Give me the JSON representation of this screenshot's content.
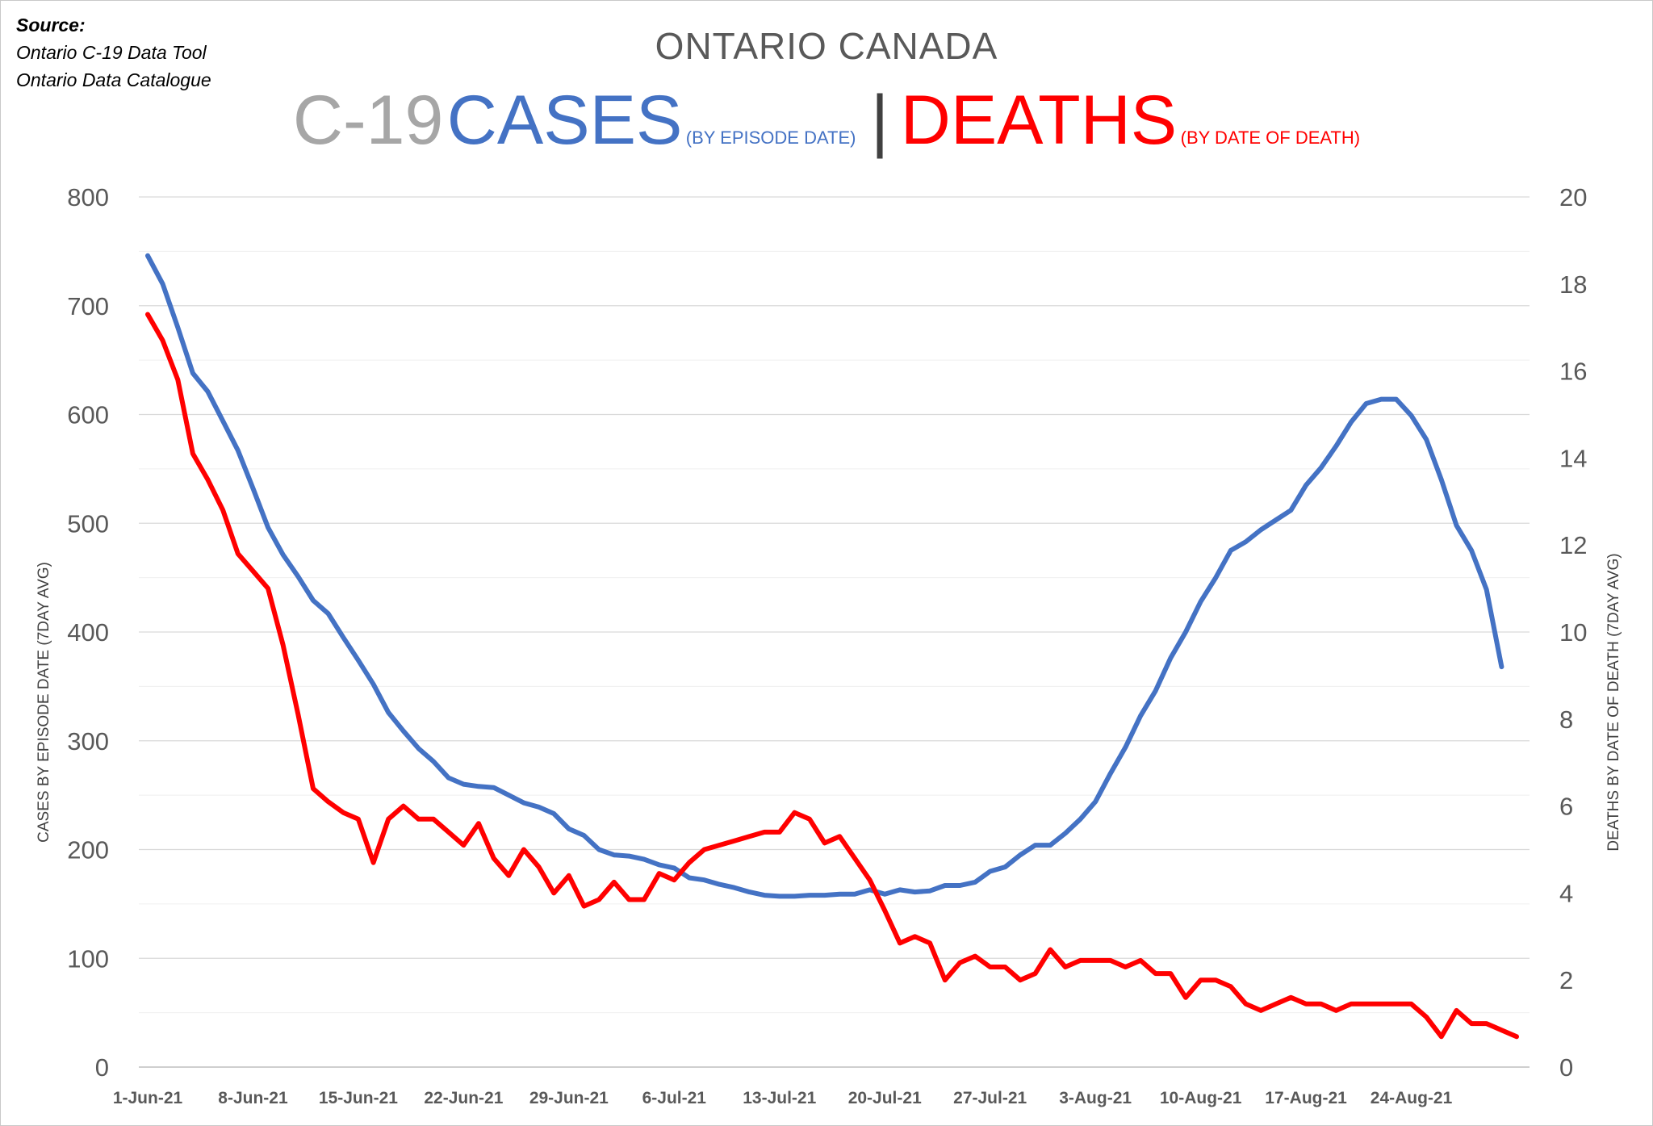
{
  "source": {
    "header": "Source:",
    "lines": [
      "Ontario C-19 Data Tool",
      "Ontario Data Catalogue"
    ]
  },
  "title": {
    "line1": "ONTARIO CANADA",
    "c19": "C-19",
    "cases": "CASES",
    "cases_sub": "(BY EPISODE DATE)",
    "separator": "|",
    "deaths": "DEATHS",
    "deaths_sub": "(BY DATE OF DEATH)"
  },
  "colors": {
    "cases": "#4472c4",
    "deaths": "#ff0000",
    "grid": "#d9d9d9",
    "tick_text": "#595959"
  },
  "chart_data": {
    "type": "line",
    "x_start": "1-Jun-21",
    "x_tick_labels": [
      "1-Jun-21",
      "8-Jun-21",
      "15-Jun-21",
      "22-Jun-21",
      "29-Jun-21",
      "6-Jul-21",
      "13-Jul-21",
      "20-Jul-21",
      "27-Jul-21",
      "3-Aug-21",
      "10-Aug-21",
      "17-Aug-21",
      "24-Aug-21"
    ],
    "y_left": {
      "label": "CASES BY EPISODE DATE (7DAY AVG)",
      "range": [
        0,
        800
      ],
      "ticks": [
        0,
        100,
        200,
        300,
        400,
        500,
        600,
        700,
        800
      ]
    },
    "y_right": {
      "label": "DEATHS BY DATE OF DEATH (7DAY AVG)",
      "range": [
        0,
        20
      ],
      "ticks": [
        0,
        2,
        4,
        6,
        8,
        10,
        12,
        14,
        16,
        18,
        20
      ]
    },
    "grid": true,
    "series": [
      {
        "name": "CASES",
        "axis": "left",
        "values": [
          746,
          720,
          680,
          638,
          621,
          594,
          567,
          532,
          496,
          471,
          451,
          429,
          417,
          395,
          374,
          352,
          326,
          309,
          293,
          281,
          266,
          260,
          258,
          257,
          250,
          243,
          239,
          233,
          219,
          213,
          200,
          195,
          194,
          191,
          186,
          183,
          174,
          172,
          168,
          165,
          161,
          158,
          157,
          157,
          158,
          158,
          159,
          159,
          163,
          159,
          163,
          161,
          162,
          167,
          167,
          170,
          180,
          184,
          195,
          204,
          204,
          215,
          228,
          244,
          270,
          294,
          323,
          346,
          376,
          400,
          428,
          450,
          475,
          483,
          494,
          503,
          512,
          535,
          551,
          571,
          593,
          610,
          614,
          614,
          599,
          577,
          540,
          498,
          475,
          439,
          368
        ]
      },
      {
        "name": "DEATHS",
        "axis": "right",
        "values": [
          17.3,
          16.7,
          15.8,
          14.1,
          13.5,
          12.8,
          11.8,
          11.4,
          11.0,
          9.7,
          8.1,
          6.4,
          6.1,
          5.85,
          5.7,
          4.7,
          5.7,
          6.0,
          5.7,
          5.7,
          5.4,
          5.1,
          5.6,
          4.8,
          4.4,
          5.0,
          4.6,
          4.0,
          4.4,
          3.7,
          3.85,
          4.25,
          3.85,
          3.85,
          4.45,
          4.3,
          4.7,
          5.0,
          5.1,
          5.2,
          5.3,
          5.4,
          5.4,
          5.85,
          5.7,
          5.15,
          5.3,
          4.8,
          4.3,
          3.6,
          2.85,
          3.0,
          2.85,
          2.0,
          2.4,
          2.55,
          2.3,
          2.3,
          2.0,
          2.15,
          2.7,
          2.3,
          2.45,
          2.45,
          2.45,
          2.3,
          2.45,
          2.15,
          2.15,
          1.6,
          2.0,
          2.0,
          1.85,
          1.45,
          1.3,
          1.45,
          1.6,
          1.45,
          1.45,
          1.3,
          1.45,
          1.45,
          1.45,
          1.45,
          1.45,
          1.15,
          0.7,
          1.3,
          1.0,
          1.0,
          0.85,
          0.7
        ]
      }
    ]
  }
}
